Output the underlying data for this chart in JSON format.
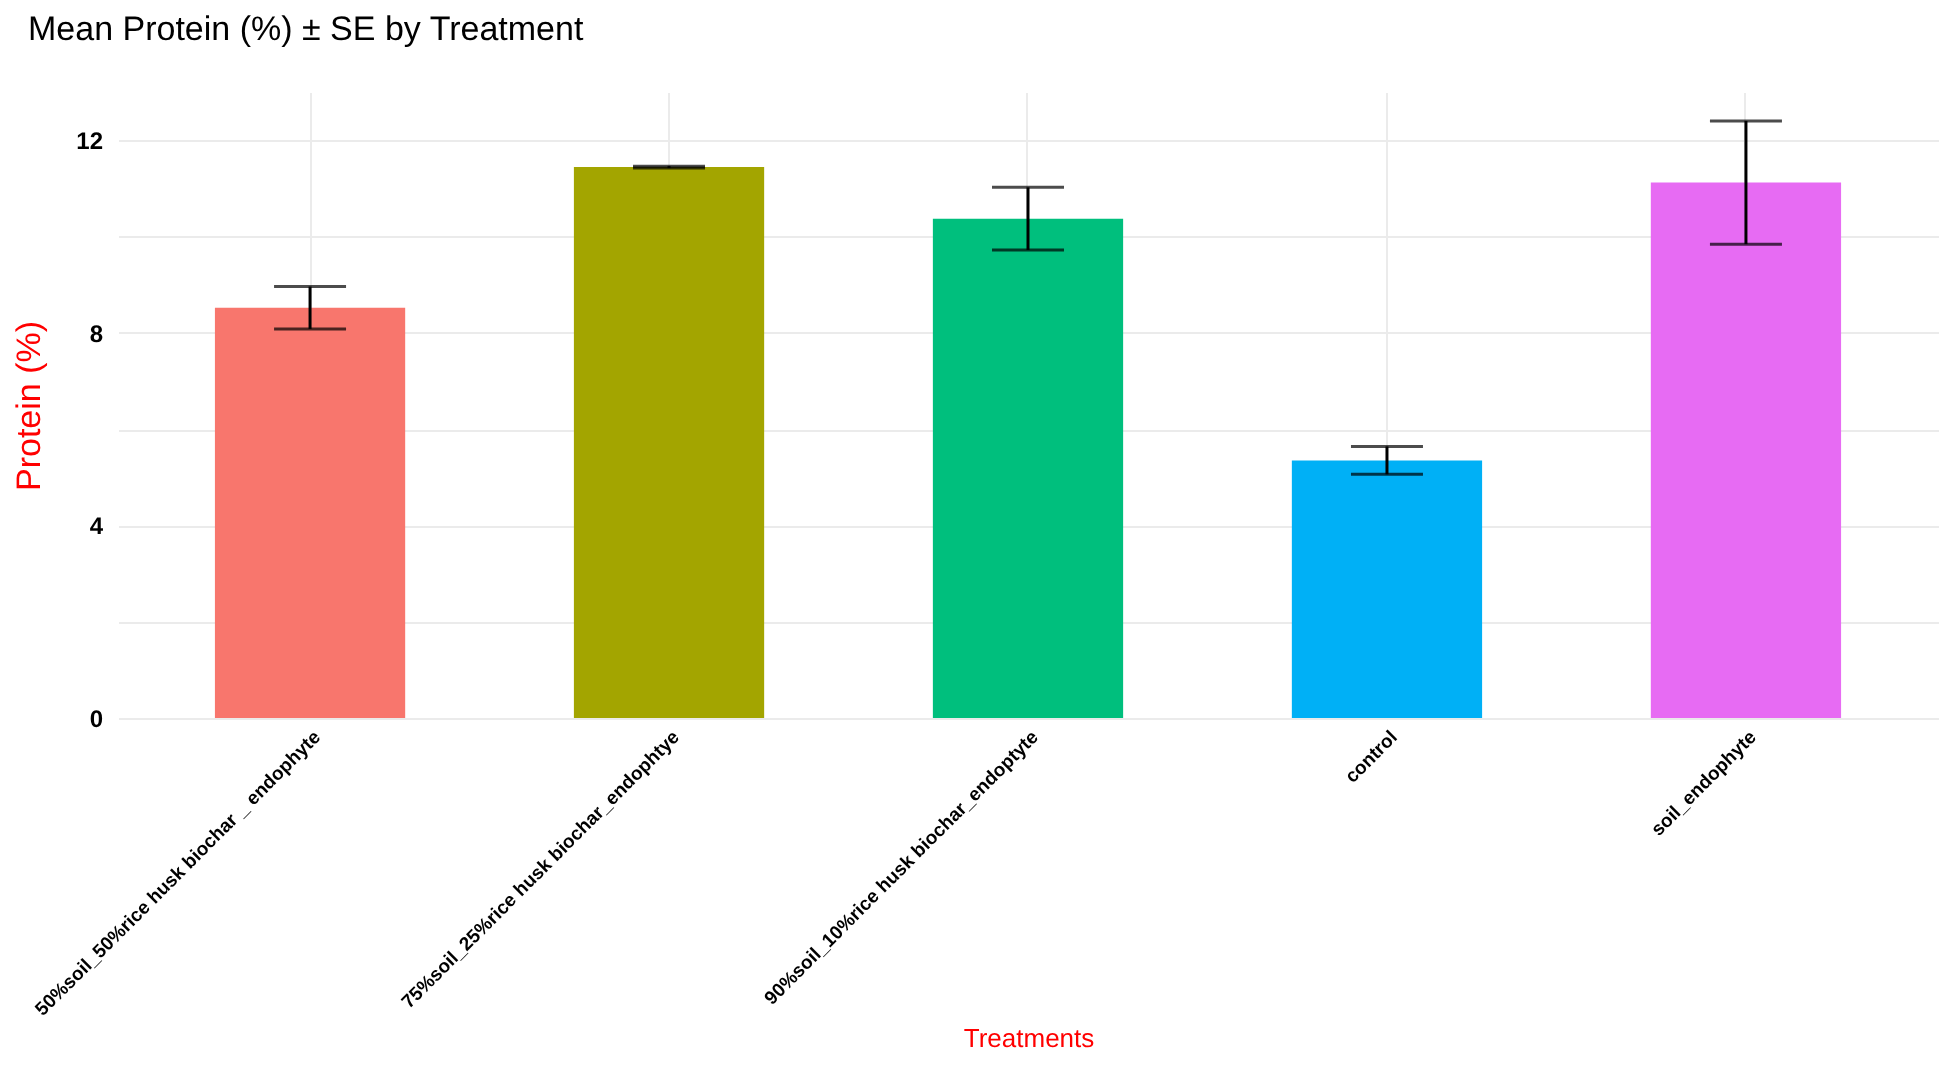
{
  "chart_data": {
    "type": "bar",
    "title": "Mean Protein (%) ± SE by Treatment",
    "xlabel": "Treatments",
    "ylabel": "Protein (%)",
    "categories": [
      "50%soil_50%rice husk biochar _ endophyte",
      "75%soil_25%rice husk biochar_endophtye",
      "90%soil_10%rice husk biochar_endoptyte",
      "control",
      "soil_endophyte"
    ],
    "values": [
      8.52,
      11.44,
      10.37,
      5.35,
      11.12
    ],
    "errors": [
      0.44,
      0.02,
      0.65,
      0.29,
      1.28
    ],
    "colors": [
      "#f8766d",
      "#a3a500",
      "#00bf7d",
      "#00b0f6",
      "#e76bf3"
    ],
    "ylim": [
      0,
      13
    ],
    "yticks": [
      0,
      {
        "value": 2,
        "label": null
      },
      4,
      {
        "value": 6,
        "label": null
      },
      8,
      {
        "value": 10,
        "label": null
      },
      12
    ],
    "grid": true
  }
}
